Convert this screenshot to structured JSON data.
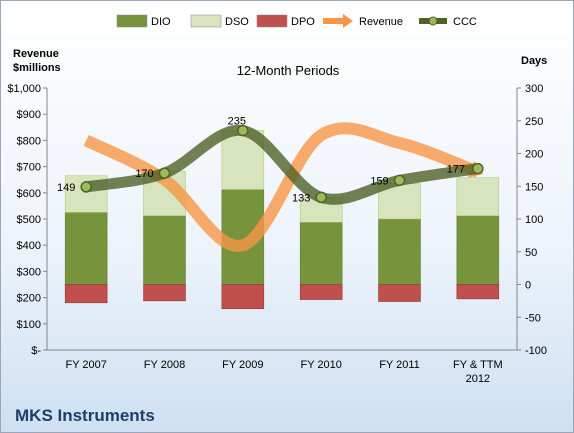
{
  "chart_data": {
    "type": "bar",
    "title": "MKS Instruments",
    "subtitle": "12-Month Periods",
    "categories": [
      "FY 2007",
      "FY 2008",
      "FY 2009",
      "FY 2010",
      "FY 2011",
      "FY & TTM 2012"
    ],
    "y_left": {
      "label_line1": "Revenue",
      "label_line2": "$millions",
      "min": 0,
      "max": 1000,
      "step": 100,
      "tick_labels": [
        "$-",
        "$100",
        "$200",
        "$300",
        "$400",
        "$500",
        "$600",
        "$700",
        "$800",
        "$900",
        "$1,000"
      ]
    },
    "y_right": {
      "label": "Days",
      "min": -100,
      "max": 300,
      "step": 50,
      "tick_labels": [
        "-100",
        "-50",
        "0",
        "50",
        "100",
        "150",
        "200",
        "250",
        "300"
      ]
    },
    "series": [
      {
        "name": "DIO",
        "kind": "stacked-bar",
        "axis": "right",
        "values": [
          110,
          105,
          145,
          95,
          100,
          105
        ],
        "color": "#77933c"
      },
      {
        "name": "DSO",
        "kind": "stacked-bar",
        "axis": "right",
        "values": [
          56,
          68,
          90,
          38,
          54,
          58
        ],
        "color": "#d7e4bd"
      },
      {
        "name": "DPO",
        "kind": "bar-negative",
        "axis": "right",
        "values": [
          -28,
          -25,
          -37,
          -23,
          -26,
          -22
        ],
        "color": "#c0504d"
      },
      {
        "name": "Revenue",
        "kind": "line",
        "axis": "left",
        "values": [
          800,
          650,
          400,
          820,
          790,
          680
        ],
        "color": "#f79646"
      },
      {
        "name": "CCC",
        "kind": "line",
        "axis": "right",
        "values": [
          149,
          170,
          235,
          133,
          159,
          177
        ],
        "color": "#4f6228",
        "labels": [
          "149",
          "170",
          "235",
          "133",
          "159",
          "177"
        ]
      }
    ],
    "legend": {
      "position": "top",
      "items": [
        "DIO",
        "DSO",
        "DPO",
        "Revenue",
        "CCC"
      ]
    },
    "grid": false
  }
}
